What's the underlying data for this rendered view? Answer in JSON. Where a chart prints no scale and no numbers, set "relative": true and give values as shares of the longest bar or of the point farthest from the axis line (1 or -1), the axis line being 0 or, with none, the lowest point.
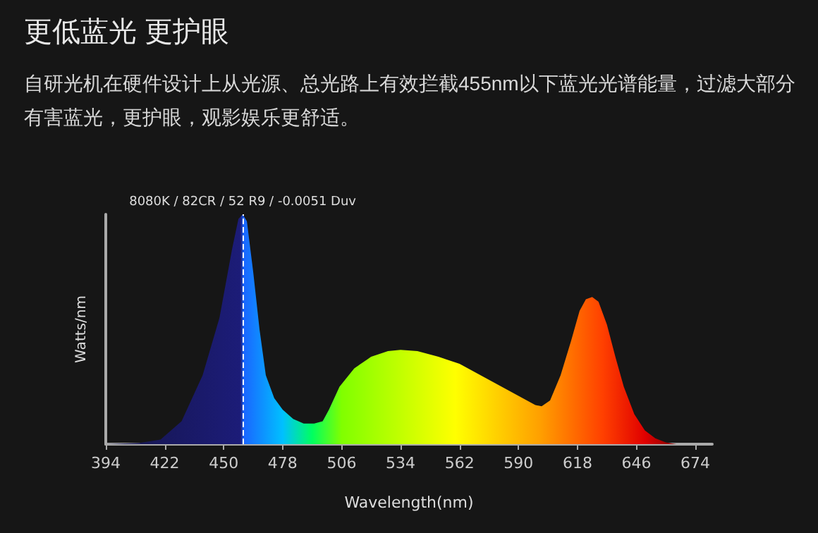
{
  "chart_data": {
    "type": "area",
    "title": "更低蓝光 更护眼",
    "subtitle": "自研光机在硬件设计上从光源、总光路上有效拦截455nm以下蓝光光谱能量，过滤大部分有害蓝光，更护眼，观影娱乐更舒适。",
    "xlabel": "Wavelength(nm)",
    "ylabel": "Watts/nm",
    "relative": true,
    "x": [
      394,
      410,
      420,
      430,
      440,
      448,
      454,
      457,
      459,
      461,
      464,
      467,
      470,
      474,
      478,
      483,
      488,
      493,
      497,
      500,
      505,
      512,
      520,
      528,
      534,
      542,
      552,
      562,
      572,
      582,
      592,
      598,
      601,
      605,
      610,
      615,
      619,
      622,
      625,
      628,
      632,
      636,
      640,
      645,
      650,
      655,
      660,
      665,
      682
    ],
    "series": [
      {
        "values": [
          0,
          0.005,
          0.02,
          0.1,
          0.3,
          0.55,
          0.85,
          0.98,
          1.0,
          0.97,
          0.75,
          0.5,
          0.3,
          0.2,
          0.15,
          0.11,
          0.09,
          0.09,
          0.1,
          0.15,
          0.25,
          0.33,
          0.38,
          0.405,
          0.41,
          0.405,
          0.38,
          0.35,
          0.3,
          0.25,
          0.2,
          0.17,
          0.165,
          0.19,
          0.3,
          0.45,
          0.58,
          0.63,
          0.64,
          0.62,
          0.52,
          0.38,
          0.25,
          0.13,
          0.06,
          0.025,
          0.008,
          0,
          0
        ]
      }
    ],
    "xlim": [
      394,
      682
    ],
    "xticks": [
      394,
      422,
      450,
      478,
      506,
      534,
      562,
      590,
      618,
      646,
      674
    ],
    "ref_lines": [
      {
        "axis": "x",
        "value": 459,
        "label": "8080K / 82CR / 52 R9 / -0.0051 Duv",
        "color": "#ffffff",
        "line_style": "dashed"
      }
    ],
    "grid": false
  }
}
